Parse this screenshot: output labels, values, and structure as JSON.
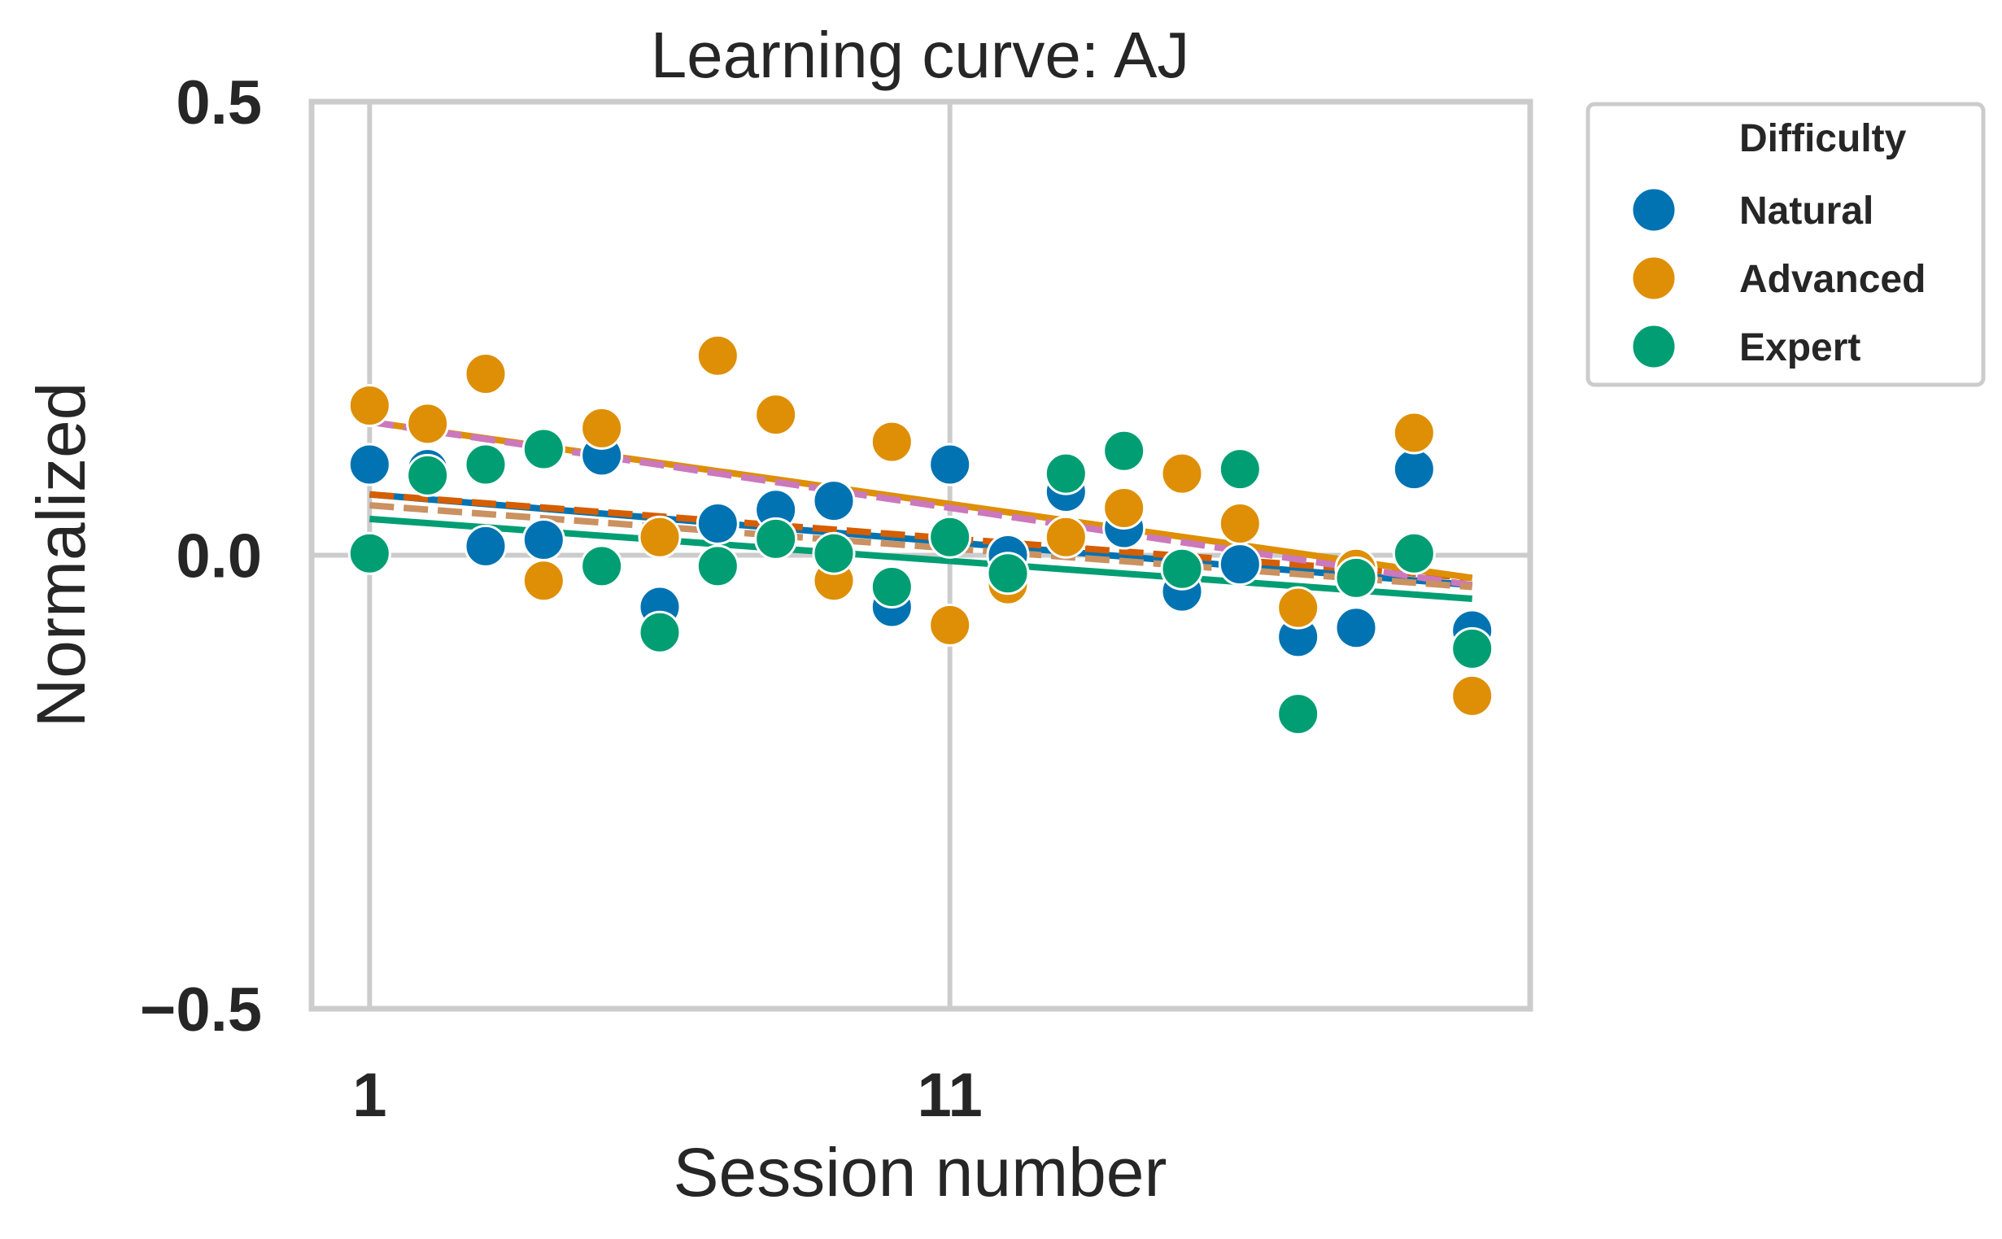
{
  "chart_data": {
    "type": "scatter",
    "title": "Learning curve: AJ",
    "xlabel": "Session number",
    "ylabel": "Normalized",
    "xlim": [
      0,
      21
    ],
    "ylim": [
      -0.5,
      0.5
    ],
    "xticks": [
      1,
      11
    ],
    "xtick_labels": [
      "1",
      "11"
    ],
    "yticks": [
      -0.5,
      0.0,
      0.5
    ],
    "ytick_labels": [
      "−0.5",
      "0.0",
      "0.5"
    ],
    "grid": true,
    "legend": {
      "title": "Difficulty",
      "placement": "outside-top-right"
    },
    "series": [
      {
        "name": "Natural",
        "color": "#0173b2",
        "x": [
          1,
          2,
          3,
          4,
          5,
          6,
          7,
          8,
          9,
          10,
          11,
          12,
          13,
          14,
          15,
          16,
          17,
          18,
          19,
          20
        ],
        "y": [
          0.1,
          0.095,
          0.01,
          0.017,
          0.11,
          -0.057,
          0.035,
          0.05,
          0.06,
          -0.057,
          0.1,
          0.0,
          0.07,
          0.03,
          -0.04,
          -0.01,
          -0.09,
          -0.08,
          0.095,
          -0.083
        ]
      },
      {
        "name": "Advanced",
        "color": "#de8f05",
        "x": [
          1,
          2,
          3,
          4,
          5,
          6,
          7,
          8,
          9,
          10,
          11,
          12,
          13,
          14,
          15,
          16,
          17,
          18,
          19,
          20
        ],
        "y": [
          0.165,
          0.145,
          0.2,
          -0.028,
          0.14,
          0.02,
          0.22,
          0.155,
          -0.028,
          0.125,
          -0.077,
          -0.032,
          0.02,
          0.052,
          0.09,
          0.035,
          -0.058,
          -0.015,
          0.135,
          -0.155
        ]
      },
      {
        "name": "Expert",
        "color": "#029e73",
        "x": [
          1,
          2,
          3,
          4,
          5,
          6,
          7,
          8,
          9,
          10,
          11,
          12,
          13,
          14,
          15,
          16,
          17,
          18,
          19,
          20
        ],
        "y": [
          0.002,
          0.088,
          0.1,
          0.117,
          -0.012,
          -0.085,
          -0.012,
          0.018,
          0.002,
          -0.035,
          0.02,
          -0.02,
          0.09,
          0.115,
          -0.015,
          0.095,
          -0.175,
          -0.025,
          0.002,
          -0.103
        ]
      }
    ],
    "trend_lines": [
      {
        "color": "#0173b2",
        "style": "solid",
        "x": [
          1,
          20
        ],
        "y": [
          0.067,
          -0.033
        ]
      },
      {
        "color": "#d55e00",
        "style": "dashed",
        "x": [
          1,
          20
        ],
        "y": [
          0.067,
          -0.025
        ]
      },
      {
        "color": "#de8f05",
        "style": "solid",
        "x": [
          1,
          20
        ],
        "y": [
          0.147,
          -0.025
        ]
      },
      {
        "color": "#cc78bc",
        "style": "dashed",
        "x": [
          1,
          20
        ],
        "y": [
          0.147,
          -0.033
        ]
      },
      {
        "color": "#029e73",
        "style": "solid",
        "x": [
          1,
          20
        ],
        "y": [
          0.04,
          -0.048
        ]
      },
      {
        "color": "#ca9161",
        "style": "dashed",
        "x": [
          1,
          20
        ],
        "y": [
          0.055,
          -0.035
        ]
      }
    ]
  }
}
